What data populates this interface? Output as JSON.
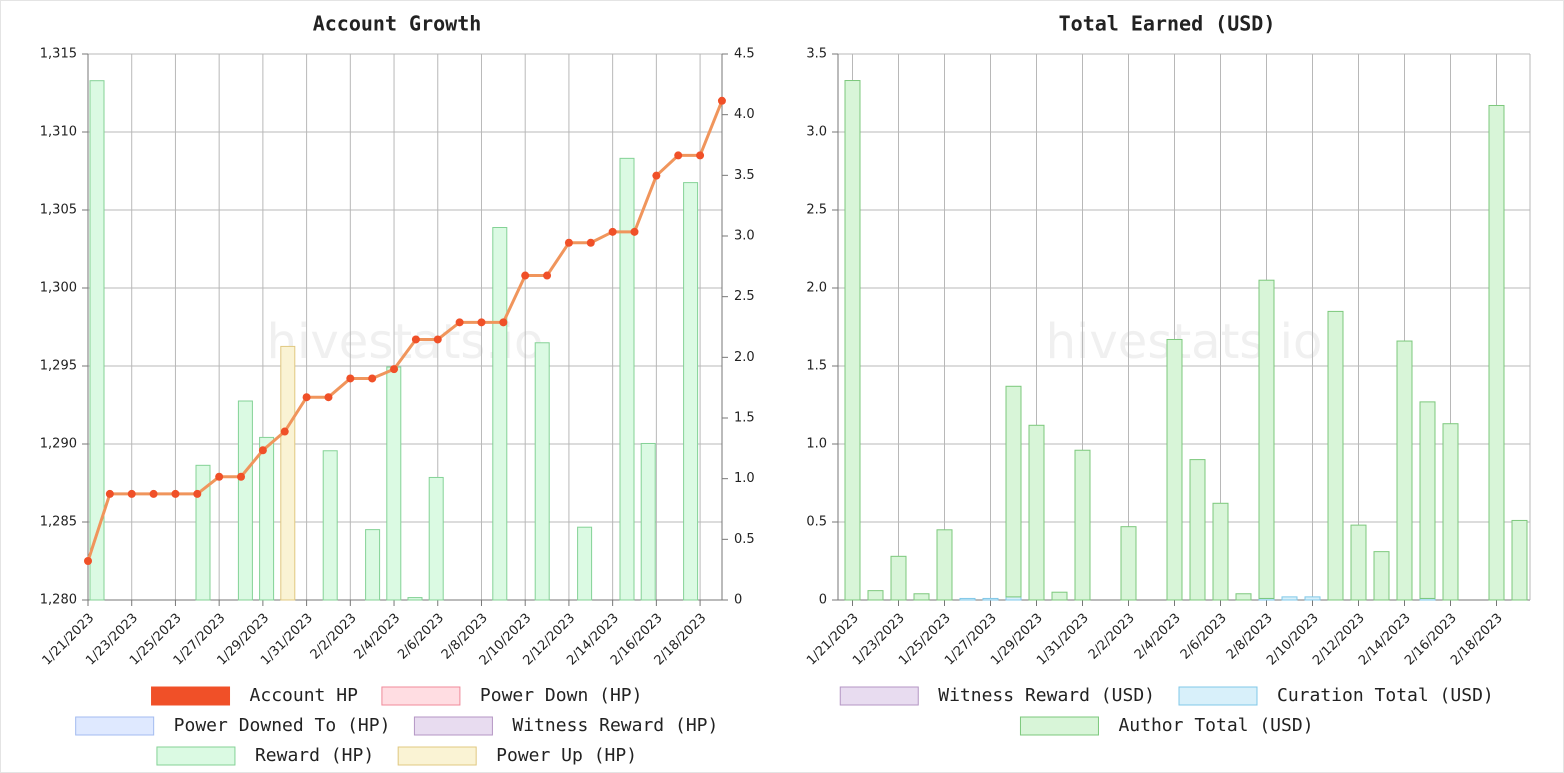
{
  "chart_data": [
    {
      "type": "bar",
      "title": "Account Growth",
      "watermark": "hivestats.io",
      "categories": [
        "1/21/2023",
        null,
        "1/23/2023",
        null,
        "1/25/2023",
        null,
        "1/27/2023",
        null,
        "1/29/2023",
        null,
        "1/31/2023",
        null,
        "2/2/2023",
        null,
        "2/4/2023",
        null,
        "2/6/2023",
        null,
        "2/8/2023",
        null,
        "2/10/2023",
        null,
        "2/12/2023",
        null,
        "2/14/2023",
        null,
        "2/16/2023",
        null,
        "2/18/2023",
        null
      ],
      "ylim": [
        1280,
        1315
      ],
      "yticks": [
        {
          "value": 1280,
          "label": "1,280"
        },
        {
          "value": 1285,
          "label": "1,285"
        },
        {
          "value": 1290,
          "label": "1,290"
        },
        {
          "value": 1295,
          "label": "1,295"
        },
        {
          "value": 1300,
          "label": "1,300"
        },
        {
          "value": 1305,
          "label": "1,305"
        },
        {
          "value": 1310,
          "label": "1,310"
        },
        {
          "value": 1315,
          "label": "1,315"
        }
      ],
      "y2lim": [
        0,
        4.5
      ],
      "y2ticks": [
        0,
        0.5,
        {
          "value": 1,
          "label": "1.0"
        },
        1.5,
        {
          "value": 2,
          "label": "2.0"
        },
        2.5,
        {
          "value": 3,
          "label": "3.0"
        },
        3.5,
        {
          "value": 4,
          "label": "4.0"
        },
        4.5
      ],
      "grid": true,
      "series": [
        {
          "name": "Account HP",
          "type": "line",
          "axis": "y",
          "color": "#f05028",
          "line_color": "#f0955c",
          "values": [
            1282.5,
            1286.8,
            1286.8,
            1286.8,
            1286.8,
            1286.8,
            1287.9,
            1287.9,
            1289.6,
            1290.8,
            1293,
            1293,
            1294.2,
            1294.2,
            1294.8,
            1296.7,
            1296.7,
            1297.8,
            1297.8,
            1297.8,
            1300.8,
            1300.8,
            1302.9,
            1302.9,
            1303.6,
            1303.6,
            1307.2,
            1308.5,
            1308.5,
            1312
          ]
        },
        {
          "name": "Power Down (HP)",
          "type": "bar",
          "axis": "y2",
          "color": "#ffdde2",
          "border": "#f08a9a",
          "values": [
            0,
            0,
            0,
            0,
            0,
            0,
            0,
            0,
            0,
            0,
            0,
            0,
            0,
            0,
            0,
            0,
            0,
            0,
            0,
            0,
            0,
            0,
            0,
            0,
            0,
            0,
            0,
            0,
            0,
            0
          ]
        },
        {
          "name": "Power Downed To (HP)",
          "type": "bar",
          "axis": "y2",
          "color": "#dfe9ff",
          "border": "#a3bbf0",
          "values": [
            0,
            0,
            0,
            0,
            0,
            0,
            0,
            0,
            0,
            0,
            0,
            0,
            0,
            0,
            0,
            0,
            0,
            0,
            0,
            0,
            0,
            0,
            0,
            0,
            0,
            0,
            0,
            0,
            0,
            0
          ]
        },
        {
          "name": "Witness Reward (HP)",
          "type": "bar",
          "axis": "y2",
          "color": "#e8dcf0",
          "border": "#b496c4",
          "values": [
            0,
            0,
            0,
            0,
            0,
            0,
            0,
            0,
            0,
            0,
            0,
            0,
            0,
            0,
            0,
            0,
            0,
            0,
            0,
            0,
            0,
            0,
            0,
            0,
            0,
            0,
            0,
            0,
            0,
            0
          ]
        },
        {
          "name": "Reward (HP)",
          "type": "bar",
          "axis": "y2",
          "color": "#dbfae3",
          "border": "#84d296",
          "values": [
            4.28,
            0,
            0,
            0,
            0,
            1.11,
            0,
            1.64,
            1.34,
            0,
            0,
            1.23,
            0,
            0.58,
            1.92,
            0.02,
            1.01,
            0,
            0,
            3.07,
            0,
            2.12,
            0,
            0.6,
            0,
            3.64,
            1.29,
            0,
            3.44,
            0
          ]
        },
        {
          "name": "Power Up (HP)",
          "type": "bar",
          "axis": "y2",
          "color": "#faf3d4",
          "border": "#e0c880",
          "values": [
            0,
            0,
            0,
            0,
            0,
            0,
            0,
            0,
            0,
            2.09,
            0,
            0,
            0,
            0,
            0,
            0,
            0,
            0,
            0,
            0,
            0,
            0,
            0,
            0,
            0,
            0,
            0,
            0,
            0,
            0
          ]
        }
      ]
    },
    {
      "type": "bar",
      "title": "Total Earned (USD)",
      "watermark": "hivestats.io",
      "categories": [
        "1/21/2023",
        null,
        "1/23/2023",
        null,
        "1/25/2023",
        null,
        "1/27/2023",
        null,
        "1/29/2023",
        null,
        "1/31/2023",
        null,
        "2/2/2023",
        null,
        "2/4/2023",
        null,
        "2/6/2023",
        null,
        "2/8/2023",
        null,
        "2/10/2023",
        null,
        "2/12/2023",
        null,
        "2/14/2023",
        null,
        "2/16/2023",
        null,
        "2/18/2023",
        null
      ],
      "ylim": [
        0,
        3.5
      ],
      "yticks": [
        0,
        0.5,
        {
          "value": 1,
          "label": "1.0"
        },
        1.5,
        {
          "value": 2,
          "label": "2.0"
        },
        2.5,
        {
          "value": 3,
          "label": "3.0"
        },
        3.5
      ],
      "grid": true,
      "series": [
        {
          "name": "Witness Reward (USD)",
          "type": "bar",
          "axis": "y",
          "color": "#e8dcf0",
          "border": "#b496c4",
          "values": [
            0,
            0,
            0,
            0,
            0,
            0,
            0,
            0,
            0,
            0,
            0,
            0,
            0,
            0,
            0,
            0,
            0,
            0,
            0,
            0,
            0,
            0,
            0,
            0,
            0,
            0,
            0,
            0,
            0,
            0
          ]
        },
        {
          "name": "Curation Total (USD)",
          "type": "bar",
          "axis": "y",
          "color": "#d8f0fa",
          "border": "#80c8e8",
          "values": [
            0,
            0,
            0,
            0,
            0,
            0.01,
            0.01,
            0.02,
            0,
            0,
            0,
            0,
            0,
            0,
            0,
            0,
            0,
            0,
            0.01,
            0.02,
            0.02,
            0,
            0,
            0,
            0,
            0.01,
            0,
            0,
            0,
            0
          ]
        },
        {
          "name": "Author Total (USD)",
          "type": "bar",
          "axis": "y",
          "color": "#d8f5d8",
          "border": "#7cc87c",
          "values": [
            3.33,
            0.06,
            0.28,
            0.04,
            0.45,
            0,
            0,
            1.35,
            1.12,
            0.05,
            0.96,
            0,
            0.47,
            0,
            1.67,
            0.9,
            0.62,
            0.04,
            2.04,
            0,
            0,
            1.85,
            0.48,
            0.31,
            1.66,
            1.26,
            1.13,
            0,
            3.17,
            0.51
          ]
        }
      ]
    }
  ]
}
